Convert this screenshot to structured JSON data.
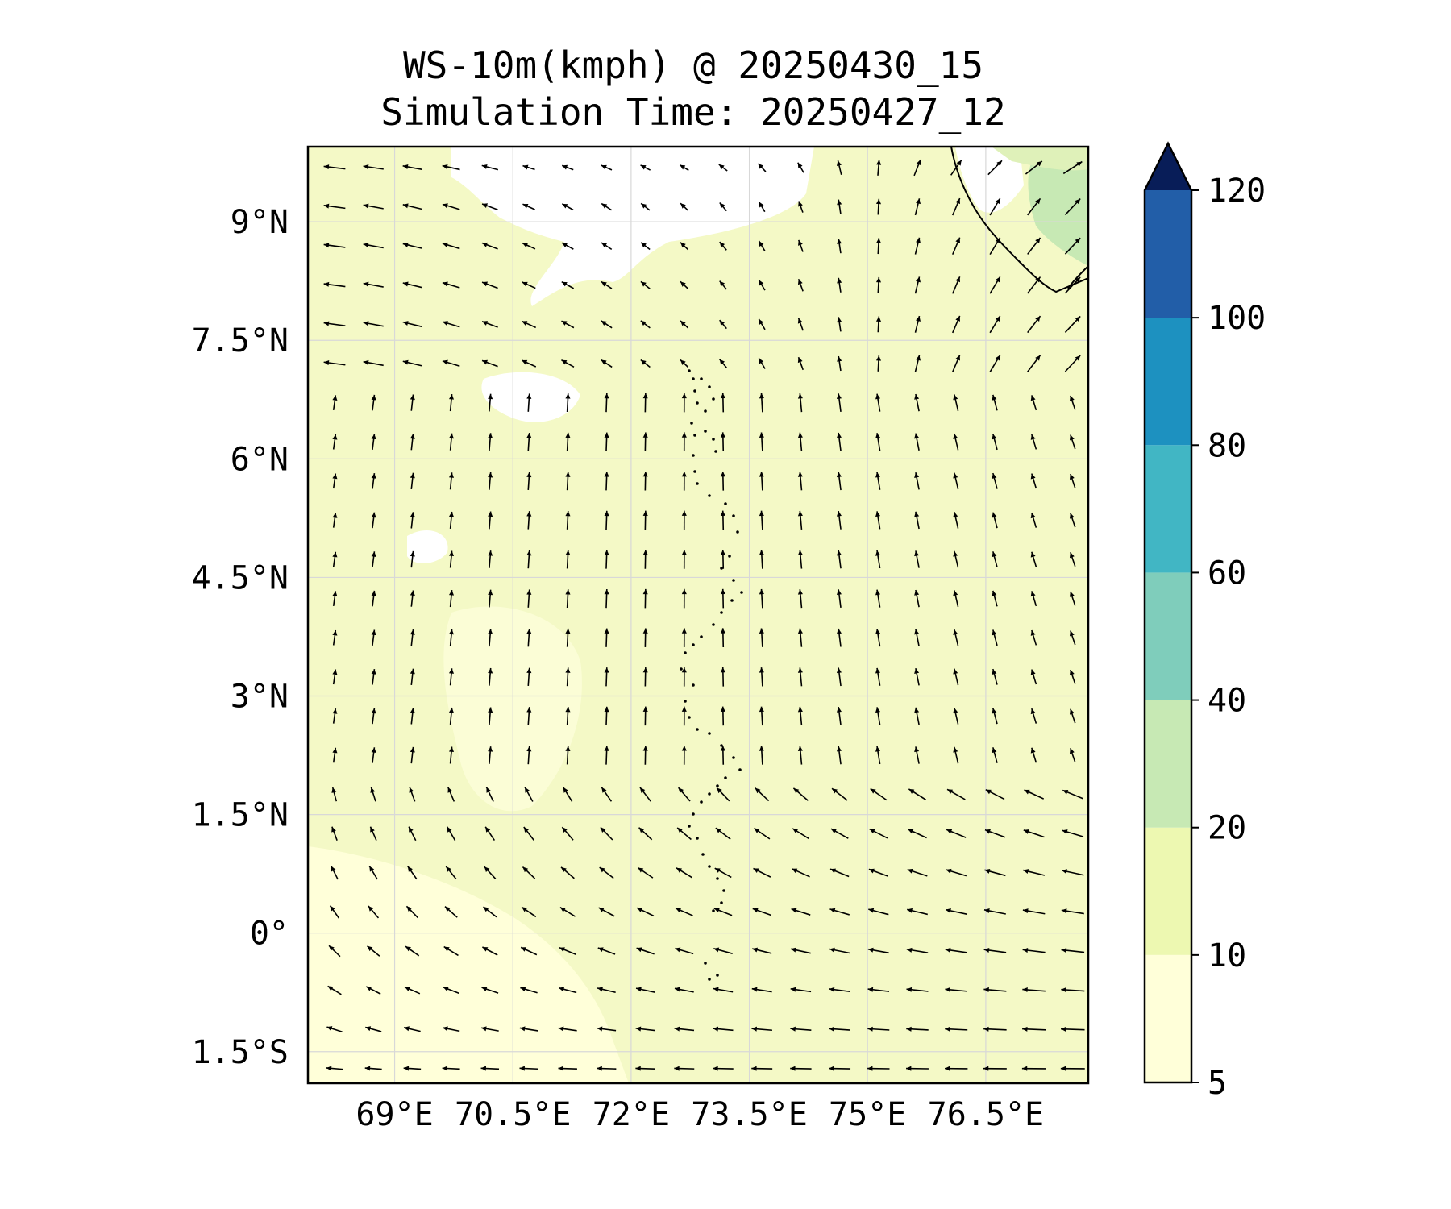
{
  "title": "WS-10m(kmph) @ 20250430_15",
  "subtitle": "Simulation Time: 20250427_12",
  "lon_ticks": [
    "69°E",
    "70.5°E",
    "72°E",
    "73.5°E",
    "75°E",
    "76.5°E"
  ],
  "lat_ticks": [
    "9°N",
    "7.5°N",
    "6°N",
    "4.5°N",
    "3°N",
    "1.5°N",
    "0°",
    "1.5°S"
  ],
  "map_extent": {
    "lon_min": 67.9,
    "lon_max": 77.8,
    "lat_min": -1.9,
    "lat_max": 9.95
  },
  "colorbar": {
    "levels": [
      5,
      10,
      20,
      40,
      60,
      80,
      100,
      120
    ],
    "labels": [
      "5",
      "10",
      "20",
      "40",
      "60",
      "80",
      "100",
      "120"
    ],
    "colors": [
      "#ffffd9",
      "#edf8b1",
      "#c7e9b4",
      "#7fcdbb",
      "#41b6c4",
      "#1d91c0",
      "#225ea8",
      "#253494"
    ],
    "extend_color": "#081d58",
    "extend": "max"
  },
  "background_colors": {
    "calm": "#ffffff",
    "low": "#ffffd9",
    "mid": "#edf8b1",
    "high": "#c7e9b4"
  }
}
